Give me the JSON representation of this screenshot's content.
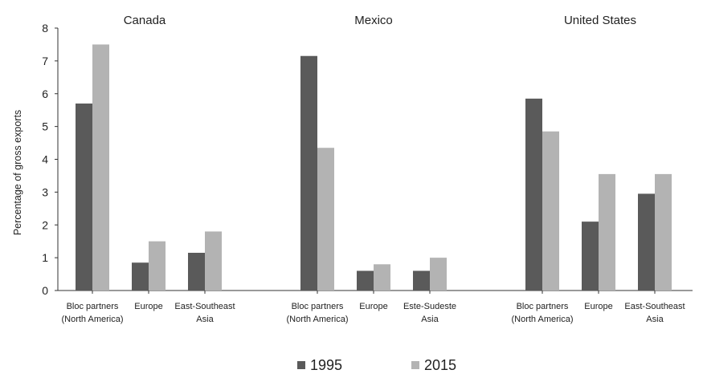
{
  "chart_data": {
    "type": "bar",
    "ylabel": "Percentage of gross exports",
    "ylim": [
      0,
      8
    ],
    "yticks": [
      0,
      1,
      2,
      3,
      4,
      5,
      6,
      7,
      8
    ],
    "legend_position": "bottom",
    "colors": {
      "1995": "#5a5a5a",
      "2015": "#b3b3b3"
    },
    "panels": [
      {
        "title": "Canada",
        "categories": [
          [
            "Bloc partners",
            "(North America)"
          ],
          [
            "Europe"
          ],
          [
            "East-Southeast",
            "Asia"
          ]
        ],
        "series": [
          {
            "name": "1995",
            "values": [
              5.7,
              0.85,
              1.15
            ]
          },
          {
            "name": "2015",
            "values": [
              7.5,
              1.5,
              1.8
            ]
          }
        ]
      },
      {
        "title": "Mexico",
        "categories": [
          [
            "Bloc partners",
            "(North America)"
          ],
          [
            "Europe"
          ],
          [
            "Este-Sudeste",
            "Asia"
          ]
        ],
        "series": [
          {
            "name": "1995",
            "values": [
              7.15,
              0.6,
              0.6
            ]
          },
          {
            "name": "2015",
            "values": [
              4.35,
              0.8,
              1.0
            ]
          }
        ]
      },
      {
        "title": "United States",
        "categories": [
          [
            "Bloc partners",
            "(North America)"
          ],
          [
            "Europe"
          ],
          [
            "East-Southeast",
            "Asia"
          ]
        ],
        "series": [
          {
            "name": "1995",
            "values": [
              5.85,
              2.1,
              2.95
            ]
          },
          {
            "name": "2015",
            "values": [
              4.85,
              3.55,
              3.55
            ]
          }
        ]
      }
    ]
  }
}
